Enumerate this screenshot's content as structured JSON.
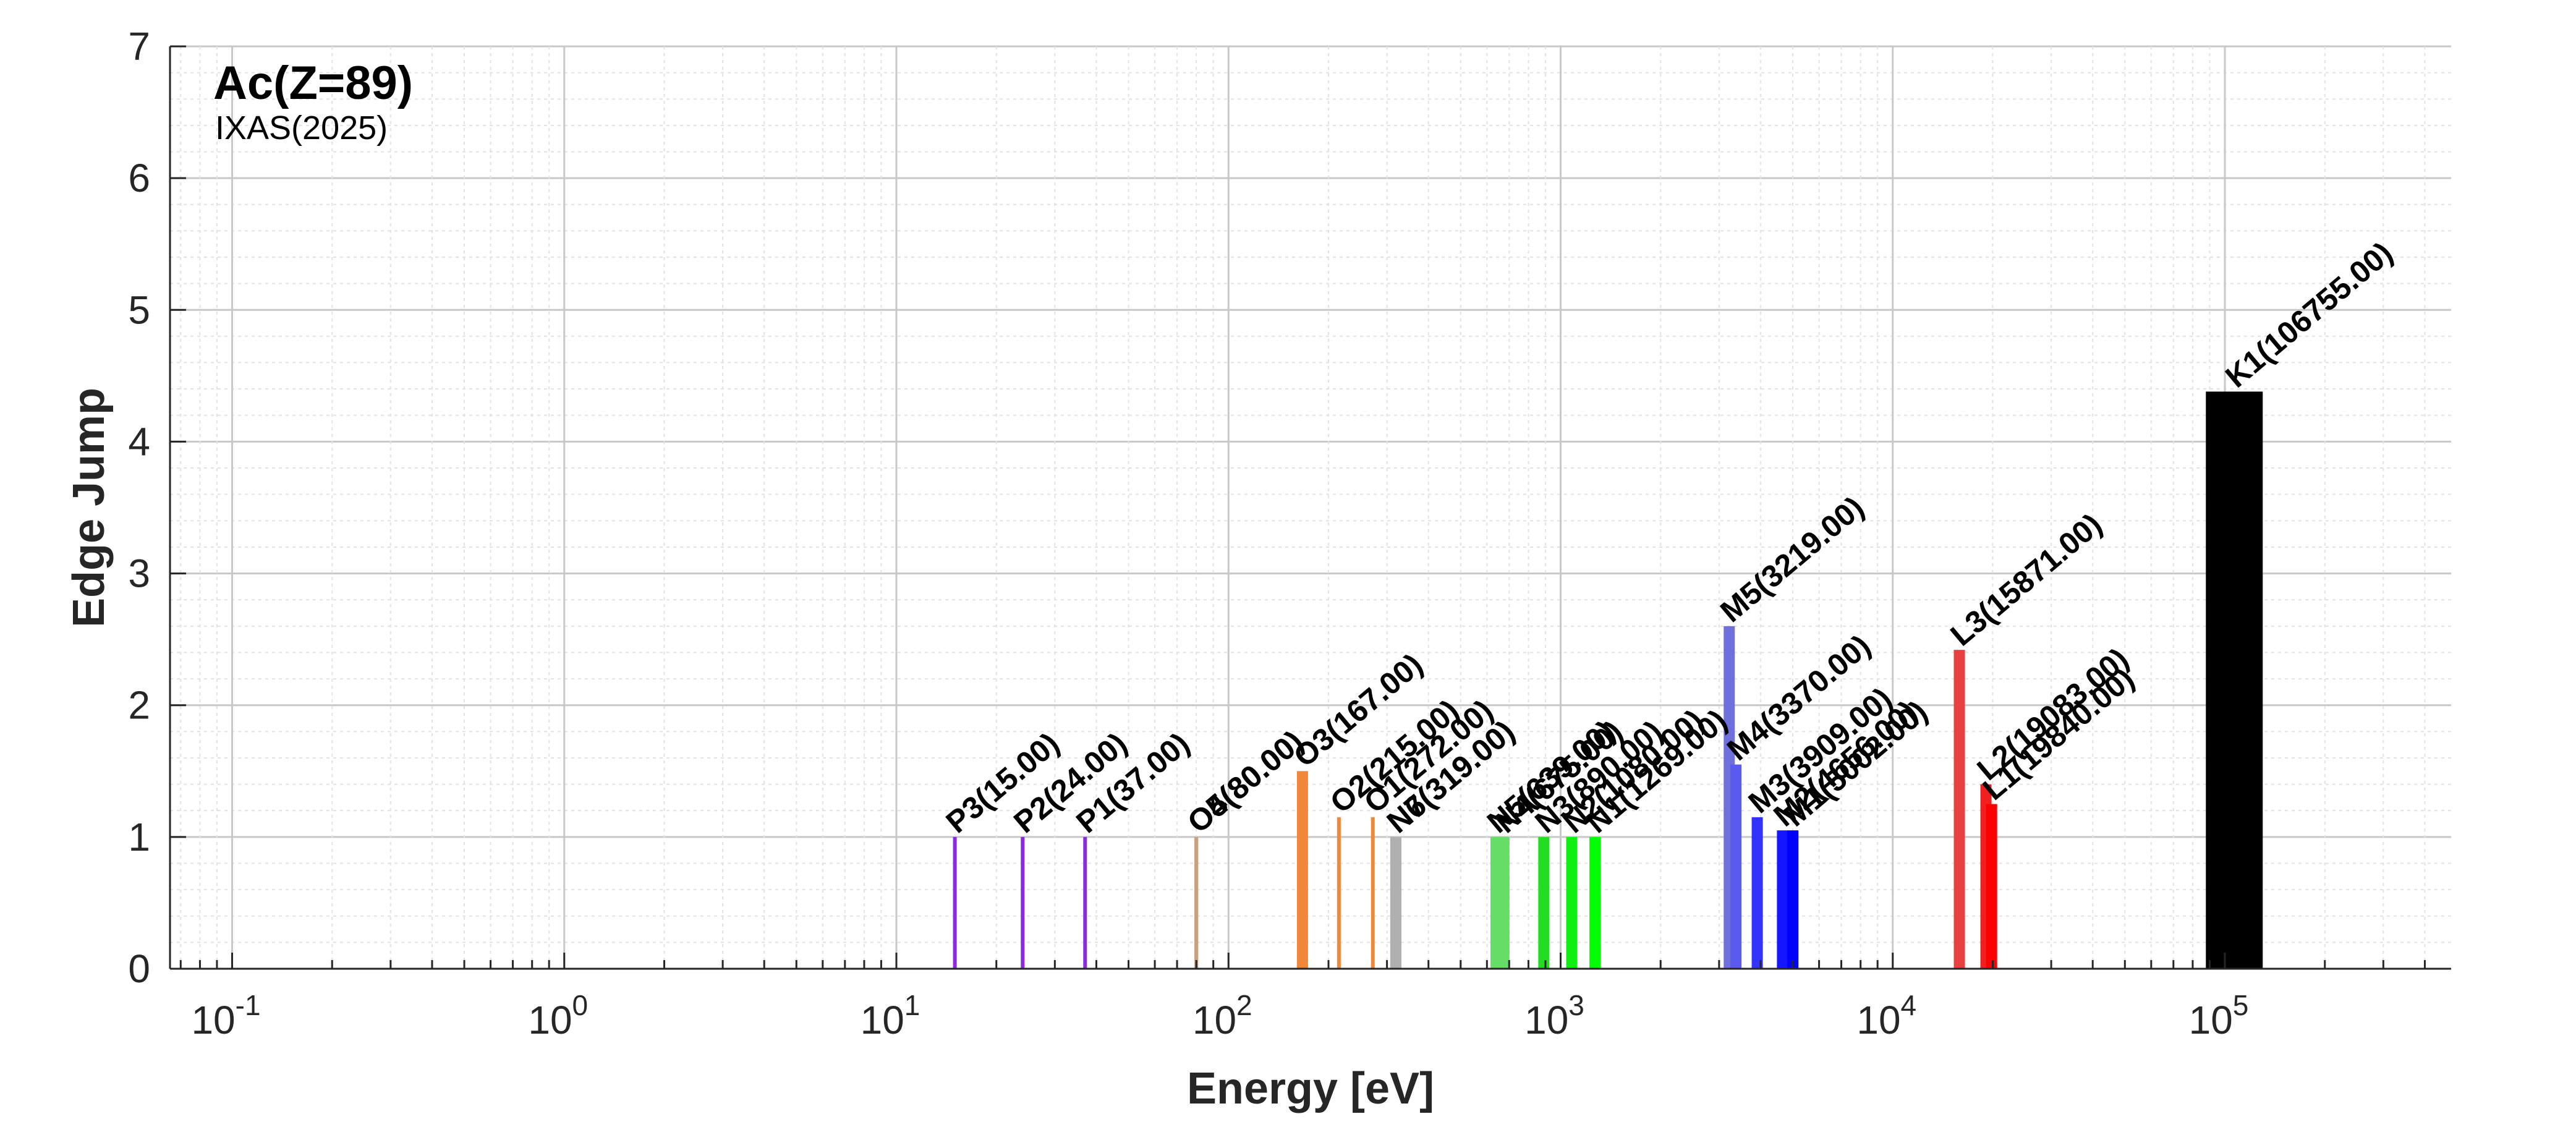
{
  "chart_data": {
    "type": "bar",
    "title": "Ac(Z=89)",
    "subtitle": "IXAS(2025)",
    "xlabel": "Energy [eV]",
    "ylabel": "Edge Jump",
    "xscale": "log",
    "xlim": [
      0.065,
      480000
    ],
    "ylim": [
      0,
      7
    ],
    "yticks": [
      "0",
      "1",
      "2",
      "3",
      "4",
      "5",
      "6",
      "7"
    ],
    "xticks": [
      {
        "base": "10",
        "exp": "-1",
        "value": 0.1
      },
      {
        "base": "10",
        "exp": "0",
        "value": 1
      },
      {
        "base": "10",
        "exp": "1",
        "value": 10
      },
      {
        "base": "10",
        "exp": "2",
        "value": 100
      },
      {
        "base": "10",
        "exp": "3",
        "value": 1000
      },
      {
        "base": "10",
        "exp": "4",
        "value": 10000
      },
      {
        "base": "10",
        "exp": "5",
        "value": 100000
      }
    ],
    "grid": true,
    "series": [
      {
        "label": "P3(15.00)",
        "energy": 15.0,
        "jump": 1.0,
        "color": "#8a2be2"
      },
      {
        "label": "P2(24.00)",
        "energy": 24.0,
        "jump": 1.0,
        "color": "#8a2be2"
      },
      {
        "label": "P1(37.00)",
        "energy": 37.0,
        "jump": 1.0,
        "color": "#8a2be2"
      },
      {
        "label": "O5(80.00)",
        "energy": 80.0,
        "jump": 1.0,
        "color": "#c8a07a"
      },
      {
        "label": "O4(80.00)",
        "energy": 80.0,
        "jump": 1.0,
        "color": "#c8a07a"
      },
      {
        "label": "O3(167.00)",
        "energy": 167.0,
        "jump": 1.5,
        "color": "#f0883c"
      },
      {
        "label": "O2(215.00)",
        "energy": 215.0,
        "jump": 1.15,
        "color": "#f0883c"
      },
      {
        "label": "O1(272.00)",
        "energy": 272.0,
        "jump": 1.15,
        "color": "#f0883c"
      },
      {
        "label": "N7(319.00)",
        "energy": 319.0,
        "jump": 1.0,
        "color": "#b0b0b0"
      },
      {
        "label": "N6(319.00)",
        "energy": 319.0,
        "jump": 1.0,
        "color": "#b0b0b0"
      },
      {
        "label": "N5(639.00)",
        "energy": 639.0,
        "jump": 1.0,
        "color": "#66dd66"
      },
      {
        "label": "N4(675.00)",
        "energy": 675.0,
        "jump": 1.0,
        "color": "#66dd66"
      },
      {
        "label": "N3(890.00)",
        "energy": 890.0,
        "jump": 1.0,
        "color": "#22dd22"
      },
      {
        "label": "N2(1080.00)",
        "energy": 1080.0,
        "jump": 1.0,
        "color": "#11ee11"
      },
      {
        "label": "N1(1269.00)",
        "energy": 1269.0,
        "jump": 1.0,
        "color": "#00ff00"
      },
      {
        "label": "M5(3219.00)",
        "energy": 3219.0,
        "jump": 2.6,
        "color": "#7070dd"
      },
      {
        "label": "M4(3370.00)",
        "energy": 3370.0,
        "jump": 1.55,
        "color": "#5a5aee"
      },
      {
        "label": "M3(3909.00)",
        "energy": 3909.0,
        "jump": 1.15,
        "color": "#3333ff"
      },
      {
        "label": "M2(4656.00)",
        "energy": 4656.0,
        "jump": 1.05,
        "color": "#1515ff"
      },
      {
        "label": "M1(5002.00)",
        "energy": 5002.0,
        "jump": 1.05,
        "color": "#0000ff"
      },
      {
        "label": "L3(15871.00)",
        "energy": 15871.0,
        "jump": 2.42,
        "color": "#e84040"
      },
      {
        "label": "L2(19083.00)",
        "energy": 19083.0,
        "jump": 1.4,
        "color": "#f02020"
      },
      {
        "label": "L1(19840.00)",
        "energy": 19840.0,
        "jump": 1.25,
        "color": "#ff0000"
      },
      {
        "label": "K1(106755.00)",
        "energy": 106755.0,
        "jump": 4.38,
        "color": "#000000"
      }
    ]
  }
}
